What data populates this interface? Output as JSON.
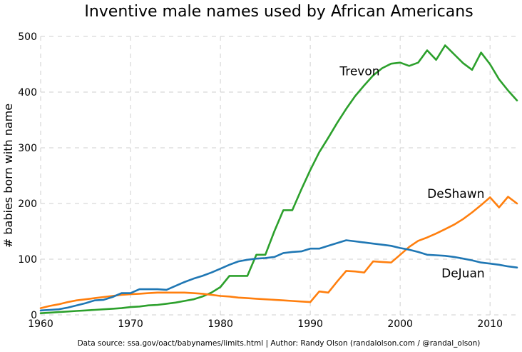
{
  "chart_data": {
    "type": "line",
    "title": "Inventive male names used by African Americans",
    "xlabel": "",
    "ylabel": "# babies born with name",
    "xlim": [
      1960,
      2013
    ],
    "ylim": [
      0,
      500
    ],
    "xticks": [
      1960,
      1970,
      1980,
      1990,
      2000,
      2010
    ],
    "yticks": [
      0,
      100,
      200,
      300,
      400,
      500
    ],
    "grid": true,
    "series": [
      {
        "name": "Trevon",
        "color": "#2ca02c",
        "x": [
          1960,
          1961,
          1962,
          1963,
          1964,
          1965,
          1966,
          1967,
          1968,
          1969,
          1970,
          1971,
          1972,
          1973,
          1974,
          1975,
          1976,
          1977,
          1978,
          1979,
          1980,
          1981,
          1982,
          1983,
          1984,
          1985,
          1986,
          1987,
          1988,
          1989,
          1990,
          1991,
          1992,
          1993,
          1994,
          1995,
          1996,
          1997,
          1998,
          1999,
          2000,
          2001,
          2002,
          2003,
          2004,
          2005,
          2006,
          2007,
          2008,
          2009,
          2010,
          2011,
          2012,
          2013
        ],
        "y": [
          3,
          4,
          5,
          6,
          7,
          8,
          9,
          10,
          11,
          12,
          14,
          15,
          17,
          18,
          20,
          22,
          25,
          28,
          33,
          40,
          50,
          70,
          70,
          70,
          108,
          108,
          150,
          188,
          188,
          225,
          260,
          292,
          318,
          345,
          370,
          393,
          412,
          430,
          443,
          451,
          453,
          447,
          453,
          475,
          458,
          484,
          468,
          452,
          440,
          471,
          450,
          423,
          403,
          385
        ]
      },
      {
        "name": "DeShawn",
        "color": "#ff7f0e",
        "x": [
          1960,
          1961,
          1962,
          1963,
          1964,
          1965,
          1966,
          1967,
          1968,
          1969,
          1970,
          1971,
          1972,
          1973,
          1974,
          1975,
          1976,
          1977,
          1978,
          1979,
          1980,
          1981,
          1982,
          1983,
          1984,
          1985,
          1986,
          1987,
          1988,
          1989,
          1990,
          1991,
          1992,
          1993,
          1994,
          1995,
          1996,
          1997,
          1998,
          1999,
          2000,
          2001,
          2002,
          2003,
          2004,
          2005,
          2006,
          2007,
          2008,
          2009,
          2010,
          2011,
          2012,
          2013
        ],
        "y": [
          12,
          16,
          19,
          23,
          26,
          28,
          30,
          32,
          34,
          36,
          37,
          38,
          39,
          40,
          40,
          40,
          40,
          39,
          38,
          36,
          34,
          33,
          31,
          30,
          29,
          28,
          27,
          26,
          25,
          24,
          23,
          42,
          40,
          60,
          79,
          78,
          76,
          96,
          95,
          94,
          108,
          122,
          133,
          139,
          146,
          154,
          162,
          172,
          184,
          197,
          211,
          193,
          212,
          200
        ]
      },
      {
        "name": "DeJuan",
        "color": "#1f77b4",
        "x": [
          1960,
          1961,
          1962,
          1963,
          1964,
          1965,
          1966,
          1967,
          1968,
          1969,
          1970,
          1971,
          1972,
          1973,
          1974,
          1975,
          1976,
          1977,
          1978,
          1979,
          1980,
          1981,
          1982,
          1983,
          1984,
          1985,
          1986,
          1987,
          1988,
          1989,
          1990,
          1991,
          1992,
          1993,
          1994,
          1995,
          1996,
          1997,
          1998,
          1999,
          2000,
          2001,
          2002,
          2003,
          2004,
          2005,
          2006,
          2007,
          2008,
          2009,
          2010,
          2011,
          2012,
          2013
        ],
        "y": [
          8,
          9,
          10,
          13,
          17,
          21,
          26,
          27,
          32,
          39,
          39,
          46,
          46,
          46,
          45,
          52,
          59,
          65,
          70,
          76,
          83,
          90,
          96,
          99,
          101,
          102,
          104,
          111,
          113,
          114,
          119,
          119,
          124,
          129,
          134,
          132,
          130,
          128,
          126,
          124,
          120,
          117,
          113,
          108,
          107,
          106,
          104,
          101,
          98,
          94,
          92,
          90,
          87,
          85
        ]
      }
    ],
    "annotations": [
      {
        "text": "Trevon",
        "x": 1995.5,
        "y": 430
      },
      {
        "text": "DeShawn",
        "x": 2006.2,
        "y": 210
      },
      {
        "text": "DeJuan",
        "x": 2007.0,
        "y": 67
      }
    ],
    "source": "Data source: ssa.gov/oact/babynames/limits.html | Author: Randy Olson (randalolson.com / @randal_olson)"
  }
}
